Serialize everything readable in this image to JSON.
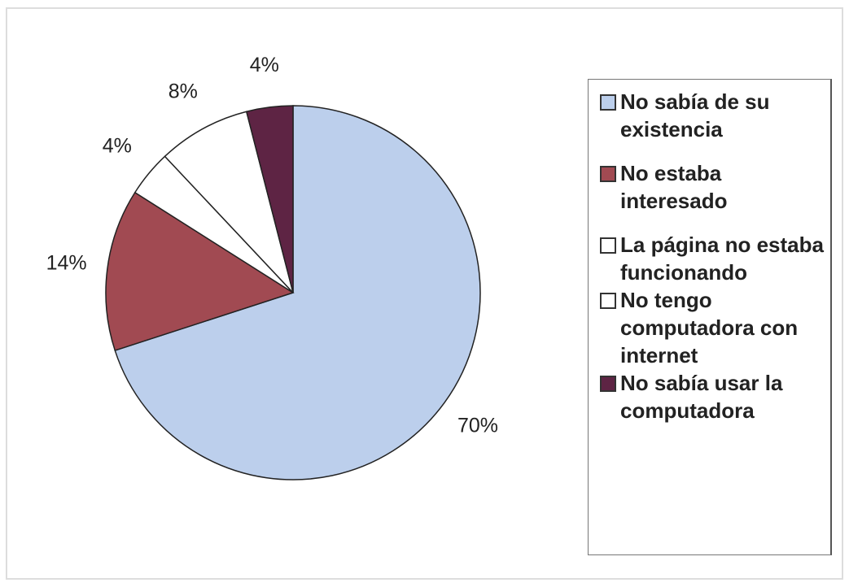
{
  "chart_data": {
    "type": "pie",
    "categories": [
      "No sabía de su existencia",
      "No estaba interesado",
      "La página no estaba funcionando",
      "No tengo computadora con internet",
      "No sabía usar la computadora"
    ],
    "values": [
      70,
      14,
      4,
      8,
      4
    ],
    "value_labels": [
      "70%",
      "14%",
      "4%",
      "8%",
      "4%"
    ],
    "colors": [
      "#bccfec",
      "#a14a52",
      "#ffffff",
      "#ffffff",
      "#5e2444"
    ],
    "legend": "right"
  }
}
